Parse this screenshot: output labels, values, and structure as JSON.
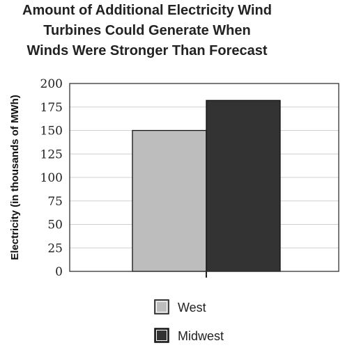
{
  "chart_data": {
    "type": "bar",
    "title_lines": [
      "Amount of Additional Electricity Wind",
      "Turbines Could Generate When",
      "Winds Were Stronger Than Forecast"
    ],
    "ylabel": "Electricity (in thousands of MWh)",
    "xlabel": "",
    "ylim": [
      0,
      200
    ],
    "yticks": [
      0,
      25,
      50,
      75,
      100,
      125,
      150,
      175,
      200
    ],
    "grid": true,
    "legend_position": "bottom",
    "series": [
      {
        "name": "West",
        "values": [
          150
        ],
        "color": "#bdbdbd"
      },
      {
        "name": "Midwest",
        "values": [
          182
        ],
        "color": "#333333"
      }
    ]
  }
}
